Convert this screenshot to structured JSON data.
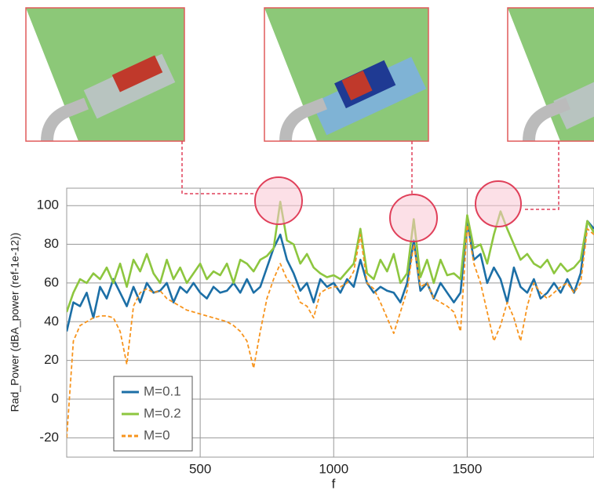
{
  "chart_data": {
    "type": "line",
    "y_label": "Rad_Power (dBA_power (ref-1e-12))",
    "x_label": "f",
    "x": [
      0,
      25,
      50,
      75,
      100,
      125,
      150,
      175,
      200,
      225,
      250,
      275,
      300,
      325,
      350,
      375,
      400,
      425,
      450,
      475,
      500,
      525,
      550,
      575,
      600,
      625,
      650,
      675,
      700,
      725,
      750,
      775,
      800,
      825,
      850,
      875,
      900,
      925,
      950,
      975,
      1000,
      1025,
      1050,
      1075,
      1100,
      1125,
      1150,
      1175,
      1200,
      1225,
      1250,
      1275,
      1300,
      1325,
      1350,
      1375,
      1400,
      1425,
      1450,
      1475,
      1500,
      1525,
      1550,
      1575,
      1600,
      1625,
      1650,
      1675,
      1700,
      1725,
      1750,
      1775,
      1800,
      1825,
      1850,
      1875,
      1900,
      1925,
      1950,
      1975
    ],
    "series": [
      {
        "name": "M=0.1",
        "color": "#1c6fa6",
        "dashed": false,
        "values": [
          35,
          50,
          48,
          55,
          42,
          58,
          52,
          62,
          55,
          48,
          58,
          50,
          60,
          55,
          56,
          60,
          50,
          58,
          55,
          60,
          55,
          52,
          58,
          55,
          56,
          60,
          55,
          62,
          55,
          58,
          68,
          78,
          85,
          72,
          65,
          56,
          60,
          50,
          62,
          58,
          60,
          55,
          62,
          58,
          72,
          60,
          55,
          58,
          56,
          55,
          50,
          60,
          82,
          56,
          60,
          52,
          60,
          55,
          50,
          55,
          92,
          72,
          75,
          60,
          68,
          62,
          50,
          68,
          58,
          55,
          62,
          52,
          55,
          60,
          55,
          62,
          55,
          65,
          92,
          88
        ]
      },
      {
        "name": "M=0.2",
        "color": "#8dc63f",
        "dashed": false,
        "values": [
          45,
          55,
          62,
          60,
          65,
          62,
          68,
          60,
          70,
          58,
          72,
          66,
          75,
          65,
          60,
          72,
          62,
          68,
          60,
          65,
          70,
          62,
          66,
          64,
          70,
          60,
          72,
          70,
          66,
          72,
          74,
          78,
          102,
          82,
          80,
          70,
          75,
          68,
          65,
          63,
          64,
          62,
          66,
          70,
          88,
          65,
          62,
          72,
          66,
          75,
          60,
          65,
          93,
          63,
          72,
          60,
          72,
          64,
          65,
          62,
          95,
          78,
          80,
          70,
          85,
          97,
          88,
          80,
          72,
          75,
          70,
          68,
          72,
          65,
          70,
          66,
          68,
          72,
          92,
          86
        ]
      },
      {
        "name": "M=0",
        "color": "#f7941d",
        "dashed": true,
        "values": [
          -20,
          30,
          38,
          40,
          42,
          43,
          43,
          42,
          35,
          18,
          48,
          55,
          57,
          55,
          56,
          52,
          50,
          48,
          46,
          45,
          44,
          43,
          42,
          41,
          40,
          38,
          35,
          30,
          16,
          35,
          52,
          62,
          70,
          62,
          58,
          50,
          48,
          42,
          55,
          57,
          58,
          58,
          60,
          66,
          85,
          60,
          57,
          50,
          42,
          34,
          45,
          56,
          80,
          58,
          60,
          52,
          50,
          48,
          45,
          35,
          90,
          70,
          60,
          45,
          30,
          38,
          50,
          42,
          30,
          48,
          60,
          55,
          52,
          55,
          58,
          60,
          55,
          60,
          88,
          85
        ]
      }
    ],
    "xlim": [
      0,
      1975
    ],
    "ylim": [
      -30,
      109
    ],
    "xticks": [
      500,
      1000,
      1500
    ],
    "yticks": [
      -20,
      0,
      20,
      40,
      60,
      80,
      100
    ],
    "grid": true,
    "legend": "lower left"
  }
}
